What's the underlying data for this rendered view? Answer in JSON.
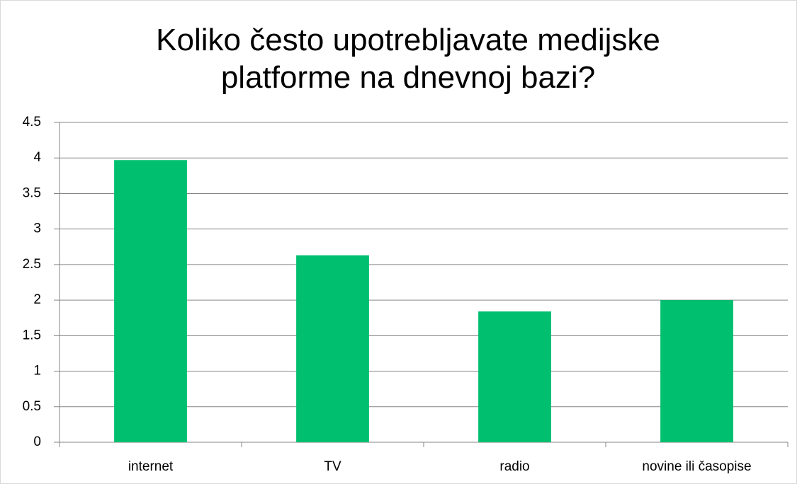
{
  "chart_data": {
    "type": "bar",
    "title": "Koliko često upotrebljavate medijske platforme na dnevnoj bazi?",
    "categories": [
      "internet",
      "TV",
      "radio",
      "novine ili časopise"
    ],
    "values": [
      3.97,
      2.63,
      1.84,
      2.0
    ],
    "color": "#00bf6f",
    "ylim": [
      0,
      4.5
    ],
    "yticks": [
      0,
      0.5,
      1,
      1.5,
      2,
      2.5,
      3,
      3.5,
      4,
      4.5
    ],
    "grid": true
  }
}
